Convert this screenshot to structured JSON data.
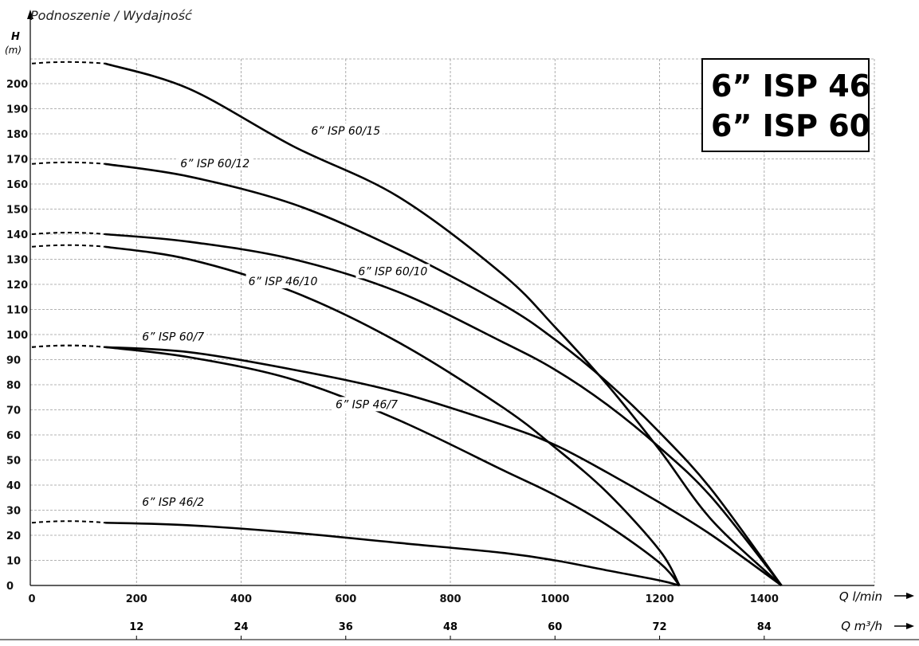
{
  "title": "Podnoszenie / Wydajność",
  "badge": [
    "6” ISP 46",
    "6” ISP 60"
  ],
  "y_axis": {
    "symbol": "H",
    "unit": "(m)"
  },
  "x_axis_primary": {
    "label": "Q l/min"
  },
  "x_axis_secondary": {
    "label": "Q m³/h",
    "ticks": [
      12,
      24,
      36,
      48,
      60,
      72,
      84
    ]
  },
  "chart_data": {
    "type": "line",
    "xlabel": "Q l/min",
    "ylabel": "H (m)",
    "xlim": [
      0,
      1600
    ],
    "ylim": [
      0,
      210
    ],
    "x_ticks": [
      0,
      200,
      400,
      600,
      800,
      1000,
      1200,
      1400
    ],
    "y_ticks": [
      0,
      10,
      20,
      30,
      40,
      50,
      60,
      70,
      80,
      90,
      100,
      110,
      120,
      130,
      140,
      150,
      160,
      170,
      180,
      190,
      200
    ],
    "grid": true,
    "series": [
      {
        "name": "6” ISP 60/15",
        "label_at": [
          600,
          180
        ],
        "dashed_to": 140,
        "points": [
          [
            0,
            208
          ],
          [
            140,
            208
          ],
          [
            300,
            198
          ],
          [
            500,
            175
          ],
          [
            700,
            155
          ],
          [
            900,
            124
          ],
          [
            1000,
            103
          ],
          [
            1100,
            80
          ],
          [
            1200,
            54
          ],
          [
            1300,
            26
          ],
          [
            1433,
            0
          ]
        ]
      },
      {
        "name": "6” ISP 60/12",
        "label_at": [
          350,
          167
        ],
        "dashed_to": 140,
        "points": [
          [
            0,
            168
          ],
          [
            140,
            168
          ],
          [
            300,
            163
          ],
          [
            500,
            152
          ],
          [
            700,
            134
          ],
          [
            900,
            112
          ],
          [
            1000,
            98
          ],
          [
            1100,
            81
          ],
          [
            1200,
            61
          ],
          [
            1300,
            38
          ],
          [
            1433,
            0
          ]
        ]
      },
      {
        "name": "6” ISP 60/10",
        "label_at": [
          690,
          124
        ],
        "dashed_to": 140,
        "points": [
          [
            0,
            140
          ],
          [
            140,
            140
          ],
          [
            300,
            137
          ],
          [
            500,
            130
          ],
          [
            700,
            117
          ],
          [
            900,
            97
          ],
          [
            1000,
            86
          ],
          [
            1100,
            72
          ],
          [
            1200,
            55
          ],
          [
            1300,
            35
          ],
          [
            1433,
            0
          ]
        ]
      },
      {
        "name": "6” ISP 46/10",
        "label_at": [
          480,
          120
        ],
        "dashed_to": 140,
        "points": [
          [
            0,
            135
          ],
          [
            140,
            135
          ],
          [
            300,
            130
          ],
          [
            500,
            117
          ],
          [
            700,
            97
          ],
          [
            900,
            71
          ],
          [
            1000,
            55
          ],
          [
            1100,
            37
          ],
          [
            1200,
            14
          ],
          [
            1238,
            0
          ]
        ]
      },
      {
        "name": "6” ISP 60/7",
        "label_at": [
          270,
          98
        ],
        "dashed_to": 140,
        "points": [
          [
            0,
            95
          ],
          [
            140,
            95
          ],
          [
            300,
            93
          ],
          [
            500,
            86
          ],
          [
            700,
            77
          ],
          [
            900,
            64
          ],
          [
            1000,
            56
          ],
          [
            1100,
            45
          ],
          [
            1200,
            33
          ],
          [
            1300,
            20
          ],
          [
            1433,
            0
          ]
        ]
      },
      {
        "name": "6” ISP 46/7",
        "label_at": [
          640,
          71
        ],
        "dashed_to": 140,
        "points": [
          [
            0,
            95
          ],
          [
            140,
            95
          ],
          [
            300,
            91
          ],
          [
            500,
            82
          ],
          [
            700,
            66
          ],
          [
            900,
            46
          ],
          [
            1000,
            36
          ],
          [
            1100,
            24
          ],
          [
            1200,
            9
          ],
          [
            1238,
            0
          ]
        ]
      },
      {
        "name": "6” ISP 46/2",
        "label_at": [
          270,
          32
        ],
        "dashed_to": 140,
        "points": [
          [
            0,
            25
          ],
          [
            140,
            25
          ],
          [
            300,
            24
          ],
          [
            500,
            21
          ],
          [
            700,
            17
          ],
          [
            900,
            13
          ],
          [
            1000,
            10
          ],
          [
            1100,
            6
          ],
          [
            1200,
            2
          ],
          [
            1238,
            0
          ]
        ]
      }
    ]
  }
}
